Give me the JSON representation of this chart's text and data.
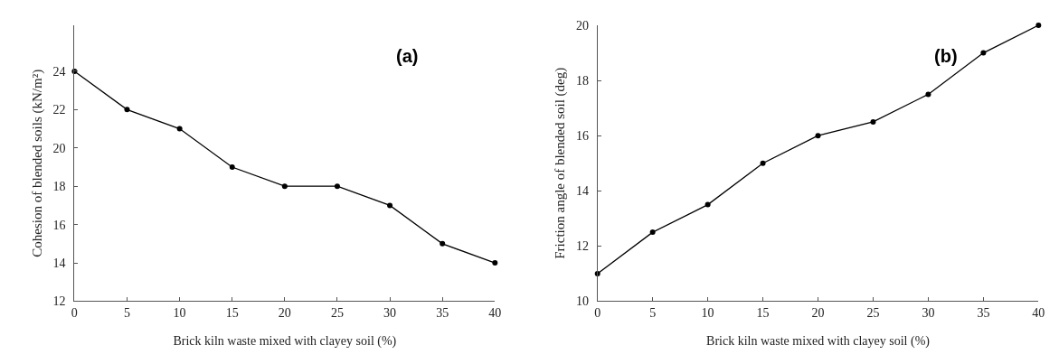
{
  "chart_data": [
    {
      "type": "line",
      "xlabel": "Brick kiln waste mixed with clayey soil (%)",
      "ylabel": "Cohesion of blended soils (kN/m²)",
      "annotations": [
        "(a)"
      ],
      "x": [
        0,
        5,
        10,
        15,
        20,
        25,
        30,
        35,
        40
      ],
      "series": [
        {
          "color": "#000000",
          "values": [
            24,
            22,
            21,
            19,
            18,
            18,
            17,
            15,
            14
          ]
        }
      ],
      "xlim": [
        0,
        40
      ],
      "xticks": [
        0,
        5,
        10,
        15,
        20,
        25,
        30,
        35,
        40
      ],
      "ylim": [
        12,
        26.4
      ],
      "yticks": [
        12,
        14,
        16,
        18,
        20,
        22,
        24
      ],
      "marker": "circle",
      "line_style": "solid"
    },
    {
      "type": "line",
      "xlabel": "Brick kiln waste mixed with clayey soil (%)",
      "ylabel": "Friction angle of blended soil (deg)",
      "annotations": [
        "(b)"
      ],
      "x": [
        0,
        5,
        10,
        15,
        20,
        25,
        30,
        35,
        40
      ],
      "series": [
        {
          "color": "#000000",
          "values": [
            11,
            12.5,
            13.5,
            15,
            16,
            16.5,
            17.5,
            19,
            20
          ]
        }
      ],
      "xlim": [
        0,
        40
      ],
      "xticks": [
        0,
        5,
        10,
        15,
        20,
        25,
        30,
        35,
        40
      ],
      "ylim": [
        10,
        20
      ],
      "yticks": [
        10,
        12,
        14,
        16,
        18,
        20
      ],
      "marker": "circle",
      "line_style": "solid"
    }
  ]
}
